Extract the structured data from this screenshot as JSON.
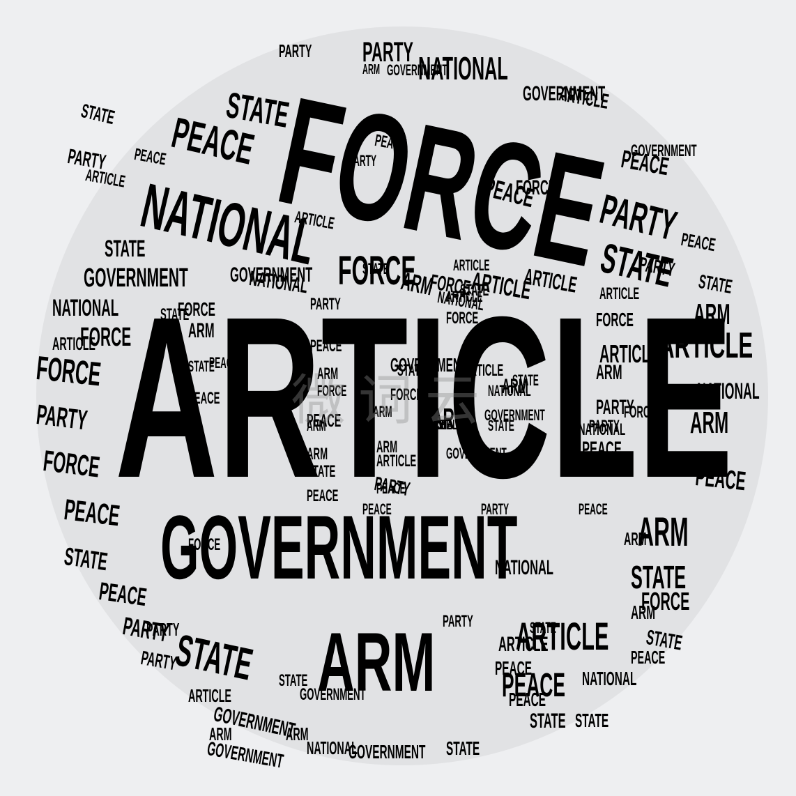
{
  "word_cloud": {
    "primary": "ARTICLE",
    "secondary": [
      "GOVERNMENT",
      "FORCE",
      "ARM",
      "NATIONAL",
      "PEACE",
      "PARTY",
      "STATE"
    ]
  },
  "watermark": "微词云",
  "colors": {
    "background": "#eeeff1",
    "disk": "#e1e2e4",
    "text": "#000000"
  },
  "words": [
    {
      "t": "ARTICLE"
    },
    {
      "t": "GOVERNMENT"
    },
    {
      "t": "FORCE"
    },
    {
      "t": "ARM"
    },
    {
      "t": "NATIONAL"
    },
    {
      "t": "PEACE"
    },
    {
      "t": "PARTY"
    },
    {
      "t": "STATE"
    },
    {
      "t": "ARTICLE"
    },
    {
      "t": "FORCE"
    },
    {
      "t": "PARTY"
    },
    {
      "t": "PARTY"
    },
    {
      "t": "STATE"
    },
    {
      "t": "PEACE"
    },
    {
      "t": "NATIONAL"
    },
    {
      "t": "GOVERNMENT"
    },
    {
      "t": "ARTICLE"
    },
    {
      "t": "GOVERNMENT"
    },
    {
      "t": "NATIONAL"
    },
    {
      "t": "FORCE"
    },
    {
      "t": "FORCE"
    },
    {
      "t": "PARTY"
    },
    {
      "t": "FORCE"
    },
    {
      "t": "PEACE"
    },
    {
      "t": "STATE"
    },
    {
      "t": "STATE"
    },
    {
      "t": "ARTICLE"
    },
    {
      "t": "ARM"
    },
    {
      "t": "ARTICLE"
    },
    {
      "t": "ARM"
    },
    {
      "t": "NATIONAL"
    },
    {
      "t": "ARM"
    },
    {
      "t": "PEACE"
    },
    {
      "t": "PEACE"
    },
    {
      "t": "ARM"
    },
    {
      "t": "STATE"
    },
    {
      "t": "FORCE"
    },
    {
      "t": "PEACE"
    },
    {
      "t": "STATE"
    },
    {
      "t": "STATE"
    },
    {
      "t": "PARTY"
    },
    {
      "t": "PEACE"
    },
    {
      "t": "PARTY"
    },
    {
      "t": "ARTICLE"
    },
    {
      "t": "GOVERNMENT"
    },
    {
      "t": "NATIONAL"
    },
    {
      "t": "GOVERNMENT"
    },
    {
      "t": "GOVERNMENT"
    },
    {
      "t": "ARM"
    },
    {
      "t": "STATE"
    },
    {
      "t": "NATIONAL"
    },
    {
      "t": "ARTICLE"
    },
    {
      "t": "FORCE"
    },
    {
      "t": "ARTICLE"
    },
    {
      "t": "PARTY"
    },
    {
      "t": "FORCE"
    },
    {
      "t": "PARTY"
    },
    {
      "t": "ARM"
    },
    {
      "t": "ARM"
    },
    {
      "t": "PEACE"
    },
    {
      "t": "ARM"
    },
    {
      "t": "STATE"
    },
    {
      "t": "PARTY"
    },
    {
      "t": "PEACE"
    },
    {
      "t": "FORCE"
    },
    {
      "t": "ARTICLE"
    },
    {
      "t": "PEACE"
    },
    {
      "t": "STATE"
    },
    {
      "t": "ARTICLE"
    },
    {
      "t": "PEACE"
    },
    {
      "t": "STATE"
    },
    {
      "t": "PEACE"
    },
    {
      "t": "ARM"
    },
    {
      "t": "PARTY"
    },
    {
      "t": "PARTY"
    },
    {
      "t": "ARM"
    },
    {
      "t": "ARM"
    },
    {
      "t": "ARTICLE"
    },
    {
      "t": "PARTY"
    },
    {
      "t": "GOVERNMENT"
    },
    {
      "t": "NATIONAL"
    },
    {
      "t": "ARM"
    },
    {
      "t": "PEACE"
    },
    {
      "t": "STATE"
    },
    {
      "t": "PEACE"
    },
    {
      "t": "FORCE"
    },
    {
      "t": "PARTY"
    },
    {
      "t": "GOVERNMENT"
    },
    {
      "t": "PEACE"
    },
    {
      "t": "ARTICLE"
    },
    {
      "t": "PARTY"
    },
    {
      "t": "FORCE"
    },
    {
      "t": "STATE"
    },
    {
      "t": "NATIONAL"
    },
    {
      "t": "NATIONAL"
    },
    {
      "t": "GOVERNMENT"
    },
    {
      "t": "FORCE"
    },
    {
      "t": "PEACE"
    },
    {
      "t": "ARTICLE"
    },
    {
      "t": "STATE"
    },
    {
      "t": "PARTY"
    },
    {
      "t": "PEACE"
    },
    {
      "t": "NATIONAL"
    },
    {
      "t": "GOVERNMENT"
    },
    {
      "t": "STATE"
    },
    {
      "t": "FORCE"
    },
    {
      "t": "ARTICLE"
    },
    {
      "t": "ARM"
    },
    {
      "t": "FORCE"
    },
    {
      "t": "STATE"
    },
    {
      "t": "ARM"
    },
    {
      "t": "STATE"
    },
    {
      "t": "PEACE"
    },
    {
      "t": "ARM"
    },
    {
      "t": "ARTICLE"
    },
    {
      "t": "PEACE"
    },
    {
      "t": "PARTY"
    },
    {
      "t": "PEACE"
    },
    {
      "t": "STATE"
    },
    {
      "t": "PARTY"
    },
    {
      "t": "GOVERNMENT"
    },
    {
      "t": "GOVERNMENT"
    },
    {
      "t": "GOVERNMENT"
    },
    {
      "t": "ARM"
    },
    {
      "t": "PEACE"
    },
    {
      "t": "STATE"
    },
    {
      "t": "ARTICLE"
    },
    {
      "t": "NATIONAL"
    },
    {
      "t": "STATE"
    },
    {
      "t": "STATE"
    },
    {
      "t": "ARTICLE"
    },
    {
      "t": "PEACE"
    },
    {
      "t": "STATE"
    },
    {
      "t": "FORCE"
    },
    {
      "t": "ARM"
    },
    {
      "t": "PARTY"
    },
    {
      "t": "ARTICLE"
    },
    {
      "t": "ARM"
    },
    {
      "t": "NATIONAL"
    },
    {
      "t": "PEACE"
    }
  ]
}
